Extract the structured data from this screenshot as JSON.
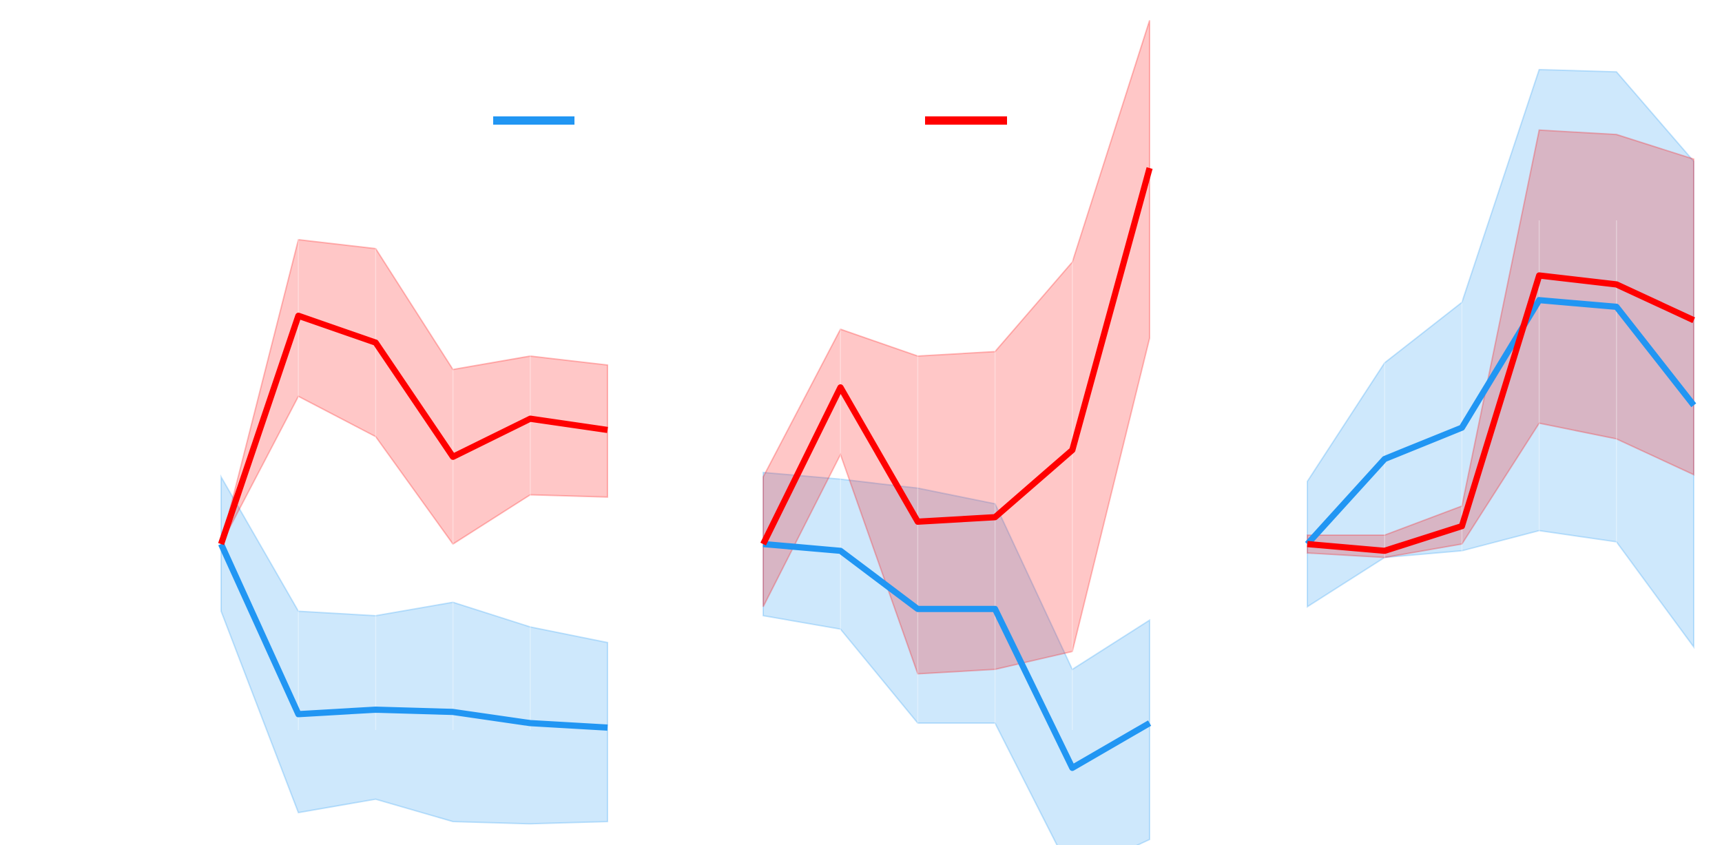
{
  "chart_data": [
    {
      "type": "line",
      "x": [
        0,
        1,
        2,
        3,
        4,
        5
      ],
      "ylim": [
        -1.06,
        2.35
      ],
      "series": [
        {
          "color": "#2196f3",
          "values": [
            0.0,
            -0.38,
            -0.37,
            -0.375,
            -0.4,
            -0.41
          ],
          "lower": [
            -0.15,
            -0.6,
            -0.57,
            -0.62,
            -0.625,
            -0.62
          ],
          "upper": [
            0.15,
            -0.15,
            -0.16,
            -0.13,
            -0.185,
            -0.22
          ]
        },
        {
          "color": "#ff0000",
          "values": [
            0.0,
            0.51,
            0.45,
            0.195,
            0.28,
            0.255
          ],
          "lower": [
            0.0,
            0.33,
            0.24,
            0.0,
            0.11,
            0.105
          ],
          "upper": [
            0.0,
            0.68,
            0.66,
            0.39,
            0.42,
            0.4
          ]
        }
      ]
    },
    {
      "type": "line",
      "x": [
        0,
        1,
        2,
        3,
        4,
        5
      ],
      "ylim": [
        -1.06,
        2.35
      ],
      "series": [
        {
          "color": "#2196f3",
          "values": [
            0.0,
            -0.015,
            -0.145,
            -0.145,
            -0.5,
            -0.4
          ],
          "lower": [
            -0.16,
            -0.19,
            -0.4,
            -0.4,
            -0.74,
            -0.66
          ],
          "upper": [
            0.16,
            0.145,
            0.125,
            0.09,
            -0.28,
            -0.17
          ]
        },
        {
          "color": "#ff0000",
          "values": [
            0.0,
            0.35,
            0.05,
            0.06,
            0.21,
            0.84
          ],
          "lower": [
            -0.14,
            0.2,
            -0.29,
            -0.28,
            -0.24,
            0.46
          ],
          "upper": [
            0.15,
            0.48,
            0.42,
            0.43,
            0.63,
            1.17
          ]
        }
      ]
    },
    {
      "type": "line",
      "x": [
        0,
        1,
        2,
        3,
        4,
        5
      ],
      "ylim": [
        -1.06,
        2.35
      ],
      "series": [
        {
          "color": "#2196f3",
          "values": [
            0.0,
            0.19,
            0.26,
            0.545,
            0.53,
            0.31
          ],
          "lower": [
            -0.14,
            -0.03,
            -0.015,
            0.03,
            0.005,
            -0.23
          ],
          "upper": [
            0.14,
            0.405,
            0.54,
            1.06,
            1.055,
            0.855
          ]
        },
        {
          "color": "#ff0000",
          "values": [
            0.0,
            -0.015,
            0.04,
            0.6,
            0.58,
            0.5
          ],
          "lower": [
            -0.02,
            -0.03,
            0.0,
            0.27,
            0.235,
            0.155
          ],
          "upper": [
            0.02,
            0.02,
            0.085,
            0.925,
            0.915,
            0.86
          ]
        }
      ]
    }
  ],
  "legend": {
    "placement": "top-center",
    "entries": [
      {
        "color": "#2196f3"
      },
      {
        "color": "#ff0000"
      }
    ]
  }
}
